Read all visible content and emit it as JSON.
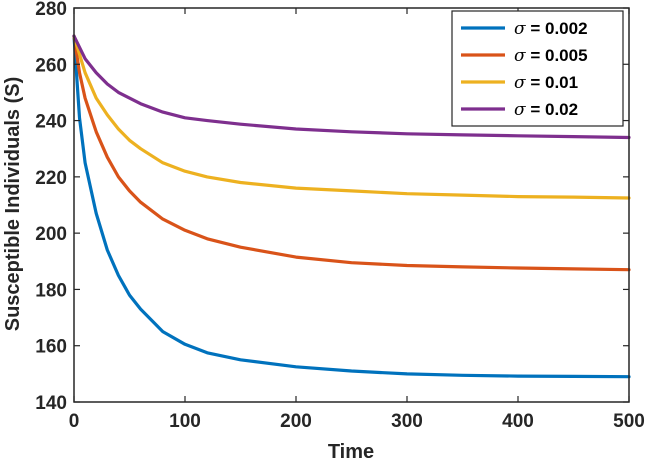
{
  "chart_data": {
    "type": "line",
    "xlabel": "Time",
    "ylabel": "Susceptible Individuals (S)",
    "xlim": [
      0,
      500
    ],
    "ylim": [
      140,
      280
    ],
    "xticks": [
      0,
      100,
      200,
      300,
      400,
      500
    ],
    "yticks": [
      140,
      160,
      180,
      200,
      220,
      240,
      260,
      280
    ],
    "grid": false,
    "legend_position": "top-right",
    "series": [
      {
        "name_symbol": "σ",
        "name_value": " = 0.002",
        "color": "#0072BD",
        "x": [
          0,
          5,
          10,
          20,
          30,
          40,
          50,
          60,
          70,
          80,
          100,
          120,
          150,
          200,
          250,
          300,
          350,
          400,
          450,
          500
        ],
        "y": [
          270,
          241,
          225,
          207,
          194,
          185,
          178,
          173,
          169,
          165,
          160.5,
          157.5,
          155,
          152.5,
          151,
          150,
          149.5,
          149.2,
          149.1,
          149
        ]
      },
      {
        "name_symbol": "σ",
        "name_value": " = 0.005",
        "color": "#D95319",
        "x": [
          0,
          5,
          10,
          20,
          30,
          40,
          50,
          60,
          80,
          100,
          120,
          150,
          200,
          250,
          300,
          350,
          400,
          450,
          500
        ],
        "y": [
          270,
          257,
          248,
          236,
          227,
          220,
          215,
          211,
          205,
          201,
          198,
          195,
          191.5,
          189.5,
          188.5,
          188,
          187.6,
          187.3,
          187
        ]
      },
      {
        "name_symbol": "σ",
        "name_value": " = 0.01",
        "color": "#EDB120",
        "x": [
          0,
          10,
          20,
          30,
          40,
          50,
          60,
          80,
          100,
          120,
          150,
          200,
          250,
          300,
          350,
          400,
          450,
          500
        ],
        "y": [
          270,
          257,
          248,
          242,
          237,
          233,
          230,
          225,
          222,
          220,
          218,
          216,
          215,
          214,
          213.5,
          213,
          212.8,
          212.5
        ]
      },
      {
        "name_symbol": "σ",
        "name_value": " = 0.02",
        "color": "#7E2F8E",
        "x": [
          0,
          10,
          20,
          30,
          40,
          50,
          60,
          80,
          100,
          120,
          150,
          200,
          250,
          300,
          350,
          400,
          450,
          500
        ],
        "y": [
          270,
          262,
          257,
          253,
          250,
          248,
          246,
          243,
          241,
          240,
          238.7,
          237,
          236,
          235.3,
          234.9,
          234.6,
          234.3,
          234
        ]
      }
    ]
  }
}
